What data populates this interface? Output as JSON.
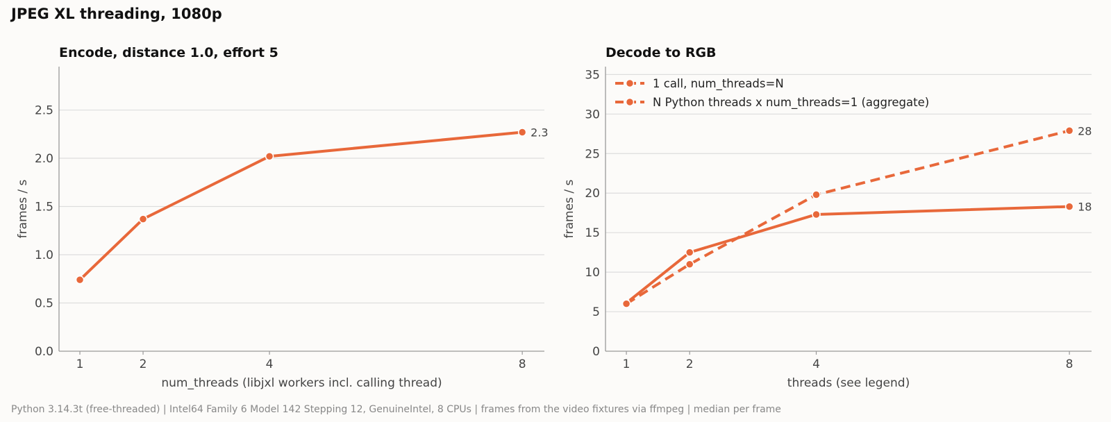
{
  "figure": {
    "title": "JPEG XL threading, 1080p",
    "footer": "Python 3.14.3t (free-threaded) | Intel64 Family 6 Model 142 Stepping 12, GenuineIntel, 8 CPUs | frames from the video fixtures via ffmpeg | median per frame"
  },
  "colors": {
    "accent": "#e8683a",
    "grid": "#dddddd",
    "axis": "#999999",
    "text": "#444444"
  },
  "chart_data": [
    {
      "type": "line",
      "title": "Encode, distance 1.0, effort 5",
      "xlabel": "num_threads (libjxl workers incl. calling thread)",
      "ylabel": "frames / s",
      "x": [
        1,
        2,
        4,
        8
      ],
      "xticks": [
        "1",
        "2",
        "4",
        "8"
      ],
      "xlim": [
        0.67,
        8.35
      ],
      "ylim": [
        0,
        2.95
      ],
      "yticks": [
        "0.0",
        "0.5",
        "1.0",
        "1.5",
        "2.0",
        "2.5"
      ],
      "grid": true,
      "legend": "none",
      "series": [
        {
          "name": "",
          "values": [
            0.74,
            1.37,
            2.02,
            2.27
          ],
          "dash": "solid",
          "end_label": "2.3"
        }
      ]
    },
    {
      "type": "line",
      "title": "Decode to RGB",
      "xlabel": "threads (see legend)",
      "ylabel": "frames / s",
      "x": [
        1,
        2,
        4,
        8
      ],
      "xticks": [
        "1",
        "2",
        "4",
        "8"
      ],
      "xlim": [
        0.67,
        8.35
      ],
      "ylim": [
        0,
        36
      ],
      "yticks": [
        "0",
        "5",
        "10",
        "15",
        "20",
        "25",
        "30",
        "35"
      ],
      "grid": true,
      "legend": "top-left",
      "series": [
        {
          "name": "1 call, num_threads=N",
          "values": [
            6.1,
            12.5,
            17.3,
            18.3
          ],
          "dash": "solid",
          "end_label": "18"
        },
        {
          "name": "N Python threads x num_threads=1 (aggregate)",
          "values": [
            6.0,
            11.0,
            19.8,
            27.9
          ],
          "dash": "dashed",
          "end_label": "28"
        }
      ]
    }
  ]
}
